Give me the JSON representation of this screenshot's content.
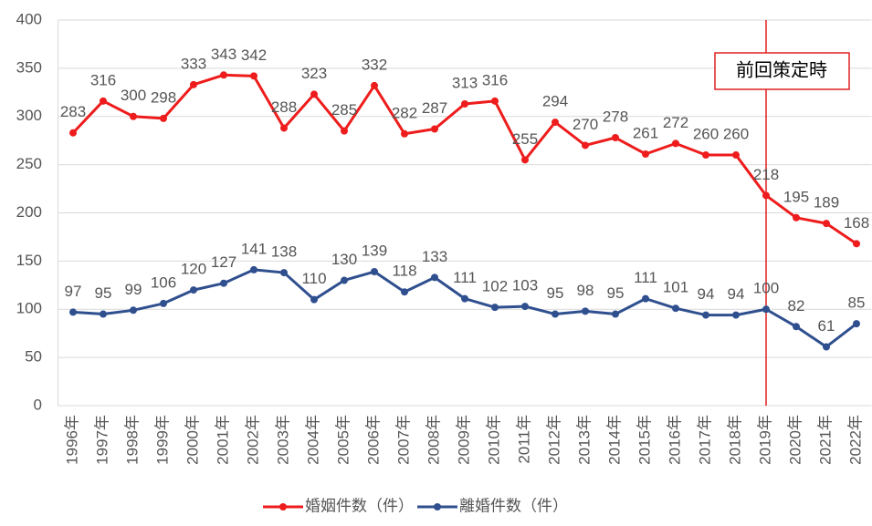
{
  "chart_data": {
    "type": "line",
    "categories": [
      "1996年",
      "1997年",
      "1998年",
      "1999年",
      "2000年",
      "2001年",
      "2002年",
      "2003年",
      "2004年",
      "2005年",
      "2006年",
      "2007年",
      "2008年",
      "2009年",
      "2010年",
      "2011年",
      "2012年",
      "2013年",
      "2014年",
      "2015年",
      "2016年",
      "2017年",
      "2018年",
      "2019年",
      "2020年",
      "2021年",
      "2022年"
    ],
    "series": [
      {
        "name": "婚姻件数（件）",
        "color": "#ee1c1c",
        "values": [
          283,
          316,
          300,
          298,
          333,
          343,
          342,
          288,
          323,
          285,
          332,
          282,
          287,
          313,
          316,
          255,
          294,
          270,
          278,
          261,
          272,
          260,
          260,
          218,
          195,
          189,
          168
        ]
      },
      {
        "name": "離婚件数（件）",
        "color": "#2f4f8f",
        "values": [
          97,
          95,
          99,
          106,
          120,
          127,
          141,
          138,
          110,
          130,
          139,
          118,
          133,
          111,
          102,
          103,
          95,
          98,
          95,
          111,
          101,
          94,
          94,
          100,
          82,
          61,
          85
        ]
      }
    ],
    "ylim": [
      0,
      400
    ],
    "yticks": [
      0,
      50,
      100,
      150,
      200,
      250,
      300,
      350,
      400
    ],
    "grid": true,
    "legend": "bottom",
    "annotation": {
      "text": "前回策定時",
      "at": "2019年",
      "color": "#e02020"
    }
  }
}
